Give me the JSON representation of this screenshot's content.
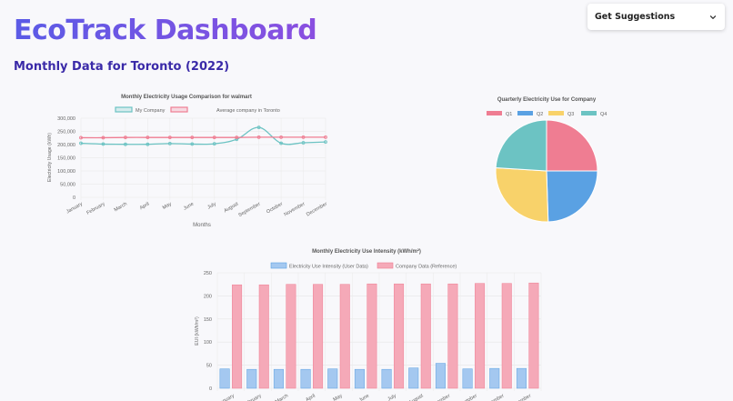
{
  "header": {
    "brand": "EcoTrack Dashboard",
    "subtitle": "Monthly Data for Toronto (2022)"
  },
  "suggestions": {
    "label": "Get Suggestions",
    "icon": "chevron-down-icon"
  },
  "colors": {
    "teal": "#6cc3c3",
    "pink": "#ef7d92",
    "blue": "#5aa1e3",
    "yellow": "#f8d26a",
    "bar_blue": "#a4c8f0",
    "bar_pink": "#f5a9b8"
  },
  "chart_data": [
    {
      "type": "line",
      "title": "Monthly Electricity Usage Comparison for walmart",
      "xlabel": "Months",
      "ylabel": "Electricity Usage (kWh)",
      "legend_position": "top",
      "grid": true,
      "categories": [
        "January",
        "February",
        "March",
        "April",
        "May",
        "June",
        "July",
        "August",
        "September",
        "October",
        "November",
        "December"
      ],
      "ylim": [
        0,
        300000
      ],
      "yticks": [
        0,
        50000,
        100000,
        150000,
        200000,
        250000,
        300000
      ],
      "ytick_labels": [
        "0",
        "50,000",
        "100,000",
        "150,000",
        "200,000",
        "250,000",
        "300,000"
      ],
      "series": [
        {
          "name": "My Company",
          "values": [
            205000,
            202000,
            201000,
            201000,
            204000,
            202000,
            203000,
            220000,
            265000,
            205000,
            207000,
            210000
          ]
        },
        {
          "name": "Average company in Toronto",
          "values": [
            226000,
            226000,
            227000,
            227000,
            227000,
            227000,
            227000,
            227000,
            228000,
            228000,
            228000,
            228000
          ]
        }
      ]
    },
    {
      "type": "pie",
      "title": "Quarterly Electricity Use for Company",
      "legend_position": "top",
      "categories": [
        "Q1",
        "Q2",
        "Q3",
        "Q4"
      ],
      "values": [
        25,
        24.5,
        26.5,
        24
      ]
    },
    {
      "type": "bar",
      "title": "Monthly Electricity Use Intensity (kWh/m²)",
      "ylabel": "EUI (kWh/m²)",
      "legend_position": "top",
      "grid": true,
      "categories": [
        "January",
        "February",
        "March",
        "April",
        "May",
        "June",
        "July",
        "August",
        "September",
        "October",
        "November",
        "December"
      ],
      "ylim": [
        0,
        250
      ],
      "yticks": [
        0,
        50,
        100,
        150,
        200,
        250
      ],
      "series": [
        {
          "name": "Electricity Use Intensity (User Data)",
          "values": [
            42,
            41,
            41,
            41,
            42,
            41,
            41,
            44,
            54,
            42,
            43,
            43
          ]
        },
        {
          "name": "Company Data (Reference)",
          "values": [
            224,
            224,
            225,
            225,
            225,
            226,
            226,
            226,
            226,
            227,
            227,
            228
          ]
        }
      ]
    }
  ]
}
